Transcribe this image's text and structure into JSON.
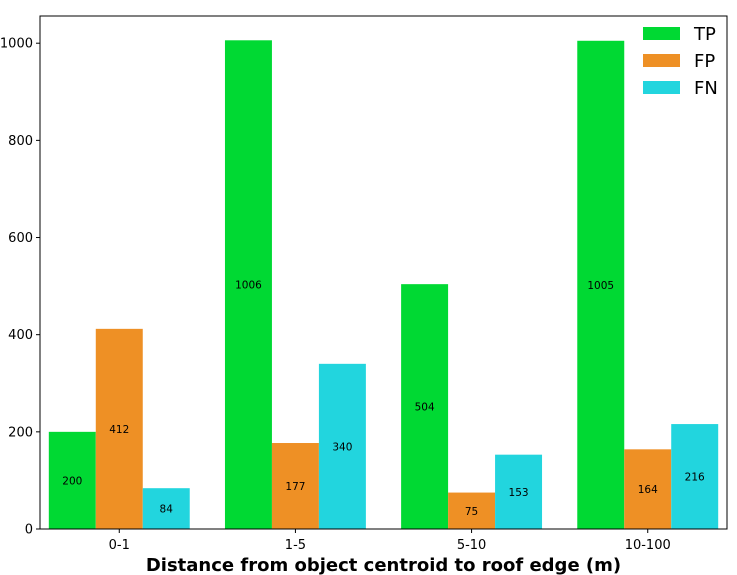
{
  "chart_data": {
    "type": "bar",
    "title": "",
    "xlabel": "Distance from object centroid to roof edge (m)",
    "ylabel": "",
    "categories": [
      "0-1",
      "1-5",
      "5-10",
      "10-100"
    ],
    "series": [
      {
        "name": "TP",
        "color": "#00d933",
        "values": [
          200,
          1006,
          504,
          1005
        ]
      },
      {
        "name": "FP",
        "color": "#ee9025",
        "values": [
          412,
          177,
          75,
          164
        ]
      },
      {
        "name": "FN",
        "color": "#22d5de",
        "values": [
          84,
          340,
          153,
          216
        ]
      }
    ],
    "ylim": [
      0,
      1056
    ],
    "yticks": [
      0,
      200,
      400,
      600,
      800,
      1000
    ],
    "grid": false,
    "legend_position": "top-right",
    "data_labels": true
  }
}
